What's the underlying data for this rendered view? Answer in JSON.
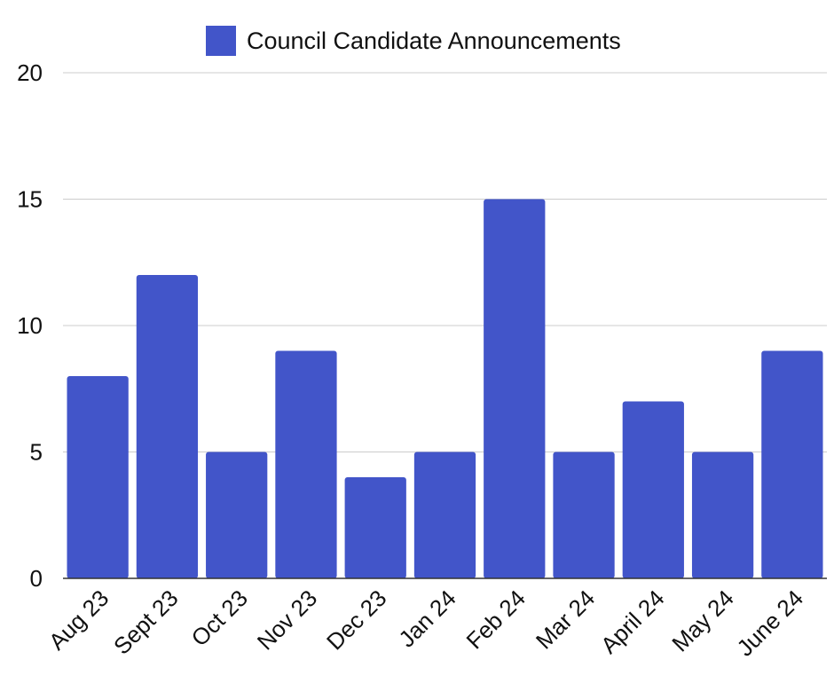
{
  "chart_data": {
    "type": "bar",
    "categories": [
      "Aug 23",
      "Sept 23",
      "Oct 23",
      "Nov 23",
      "Dec 23",
      "Jan 24",
      "Feb 24",
      "Mar 24",
      "April 24",
      "May 24",
      "June 24"
    ],
    "series": [
      {
        "name": "Council Candidate Announcements",
        "color": "#4255c9",
        "values": [
          8,
          12,
          5,
          9,
          4,
          5,
          15,
          5,
          7,
          5,
          9
        ]
      }
    ],
    "yticks": [
      "0",
      "5",
      "10",
      "15",
      "20"
    ],
    "ylim": [
      0,
      20
    ],
    "grid": true,
    "legend_position": "top-center"
  }
}
